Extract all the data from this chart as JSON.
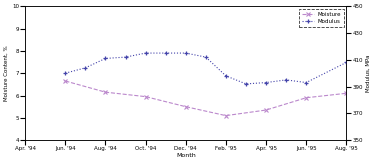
{
  "x_labels": [
    "Apr. '94",
    "Jun. '94",
    "Aug. '94",
    "Oct. '94",
    "Dec. '94",
    "Feb. '95",
    "Apr. '95",
    "Jun. '95",
    "Aug. '95"
  ],
  "x_positions": [
    0,
    1,
    2,
    3,
    4,
    5,
    6,
    7,
    8
  ],
  "moisture_x": [
    1,
    2,
    3,
    4,
    5,
    6,
    7,
    8
  ],
  "moisture_y": [
    6.65,
    6.15,
    5.95,
    5.5,
    5.1,
    5.35,
    5.9,
    6.1
  ],
  "modulus_x": [
    1,
    1.5,
    2,
    2.5,
    3,
    3.5,
    4,
    4.5,
    5,
    5.5,
    6,
    6.5,
    7,
    8
  ],
  "modulus_y": [
    400,
    404,
    411,
    412,
    415,
    415,
    415,
    412,
    398,
    392,
    393,
    395,
    393,
    408
  ],
  "moisture_color": "#bb88cc",
  "modulus_color": "#4444aa",
  "ylabel_left": "Moisture Content, %",
  "ylabel_right": "Modulus, MPa",
  "xlabel": "Month",
  "ylim_left": [
    4,
    10
  ],
  "ylim_right": [
    350,
    450
  ],
  "yticks_left": [
    4,
    5,
    6,
    7,
    8,
    9,
    10
  ],
  "yticks_right": [
    350,
    370,
    390,
    410,
    430,
    450
  ],
  "legend_labels": [
    "Moisture",
    "Modulus"
  ]
}
